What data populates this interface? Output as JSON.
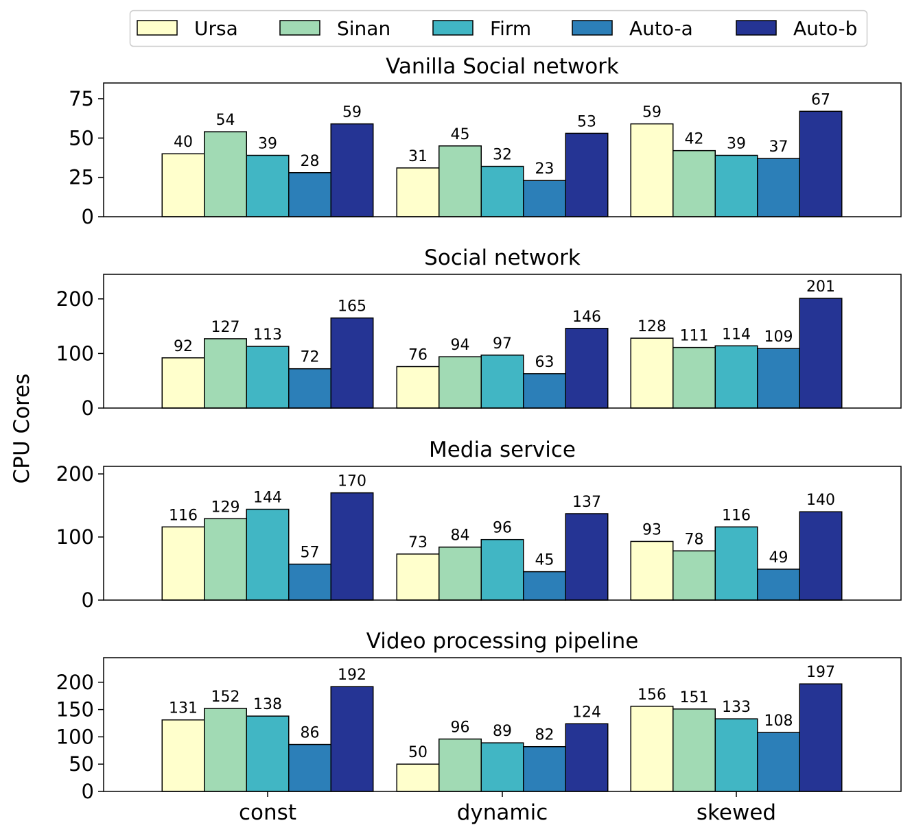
{
  "chart_data": {
    "type": "bar",
    "ylabel": "CPU Cores",
    "categories": [
      "const",
      "dynamic",
      "skewed"
    ],
    "legend": {
      "placement": "top-center",
      "entries": [
        {
          "name": "Ursa",
          "color": "#ffffcc"
        },
        {
          "name": "Sinan",
          "color": "#a1dab4"
        },
        {
          "name": "Firm",
          "color": "#41b6c4"
        },
        {
          "name": "Auto-a",
          "color": "#2c7fb8"
        },
        {
          "name": "Auto-b",
          "color": "#253494"
        }
      ]
    },
    "panels": [
      {
        "title": "Vanilla Social network",
        "ylim": [
          0,
          85
        ],
        "yticks": [
          0,
          25,
          50,
          75
        ],
        "series": [
          {
            "name": "Ursa",
            "values": [
              40,
              31,
              59
            ]
          },
          {
            "name": "Sinan",
            "values": [
              54,
              45,
              42
            ]
          },
          {
            "name": "Firm",
            "values": [
              39,
              32,
              39
            ]
          },
          {
            "name": "Auto-a",
            "values": [
              28,
              23,
              37
            ]
          },
          {
            "name": "Auto-b",
            "values": [
              59,
              53,
              67
            ]
          }
        ]
      },
      {
        "title": "Social network",
        "ylim": [
          0,
          245
        ],
        "yticks": [
          0,
          100,
          200
        ],
        "series": [
          {
            "name": "Ursa",
            "values": [
              92,
              76,
              128
            ]
          },
          {
            "name": "Sinan",
            "values": [
              127,
              94,
              111
            ]
          },
          {
            "name": "Firm",
            "values": [
              113,
              97,
              114
            ]
          },
          {
            "name": "Auto-a",
            "values": [
              72,
              63,
              109
            ]
          },
          {
            "name": "Auto-b",
            "values": [
              165,
              146,
              201
            ]
          }
        ]
      },
      {
        "title": "Media service",
        "ylim": [
          0,
          212
        ],
        "yticks": [
          0,
          100,
          200
        ],
        "series": [
          {
            "name": "Ursa",
            "values": [
              116,
              73,
              93
            ]
          },
          {
            "name": "Sinan",
            "values": [
              129,
              84,
              78
            ]
          },
          {
            "name": "Firm",
            "values": [
              144,
              96,
              116
            ]
          },
          {
            "name": "Auto-a",
            "values": [
              57,
              45,
              49
            ]
          },
          {
            "name": "Auto-b",
            "values": [
              170,
              137,
              140
            ]
          }
        ]
      },
      {
        "title": "Video processing pipeline",
        "ylim": [
          0,
          245
        ],
        "yticks": [
          0,
          50,
          100,
          150,
          200
        ],
        "series": [
          {
            "name": "Ursa",
            "values": [
              131,
              50,
              156
            ]
          },
          {
            "name": "Sinan",
            "values": [
              152,
              96,
              151
            ]
          },
          {
            "name": "Firm",
            "values": [
              138,
              89,
              133
            ]
          },
          {
            "name": "Auto-a",
            "values": [
              86,
              82,
              108
            ]
          },
          {
            "name": "Auto-b",
            "values": [
              192,
              124,
              197
            ]
          }
        ]
      }
    ]
  }
}
